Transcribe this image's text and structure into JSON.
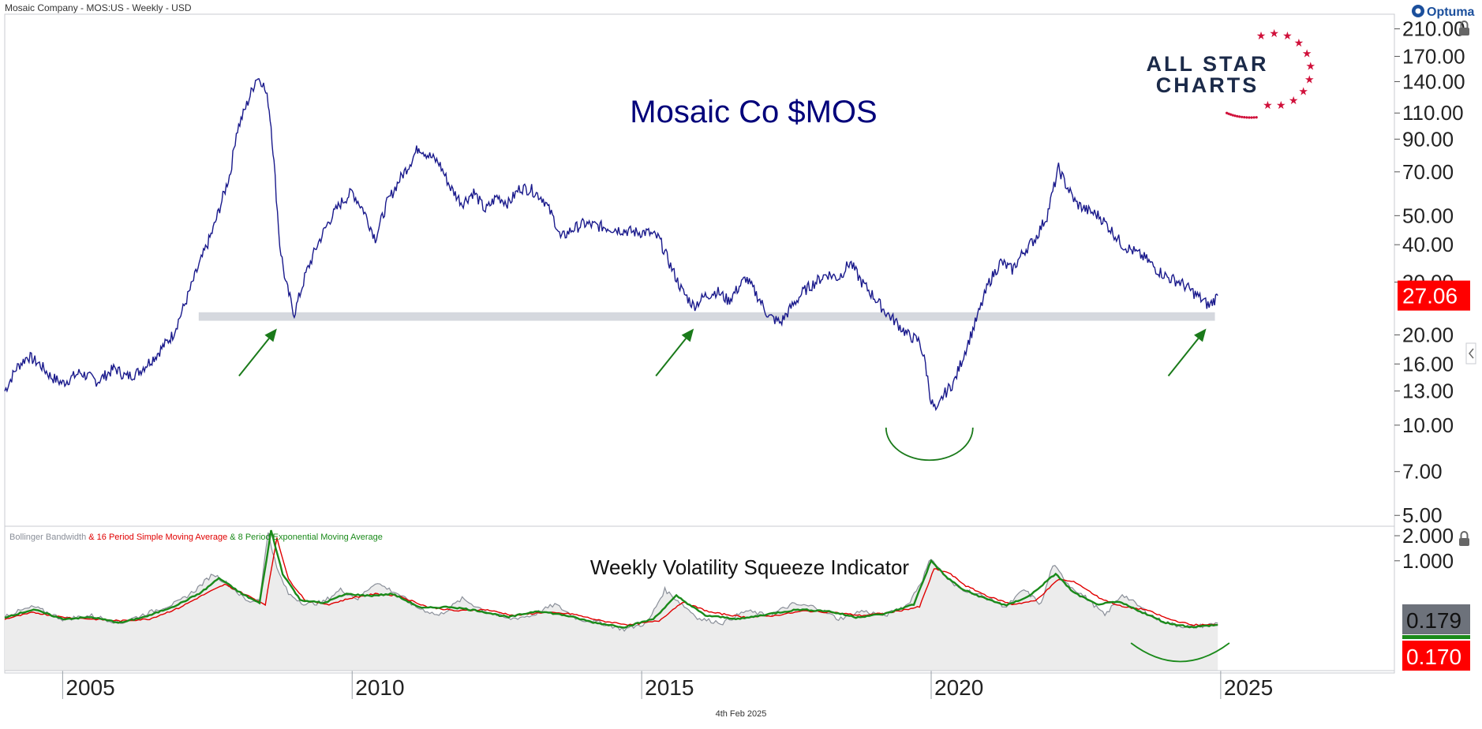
{
  "header": {
    "instrument": "Mosaic Company - MOS:US - Weekly - USD",
    "provider": "Optuma",
    "date": "4th Feb 2025"
  },
  "brand": {
    "line1": "ALL STAR",
    "line2": "CHARTS"
  },
  "colors": {
    "price": "#1a1a8c",
    "support_band": "#d5d8de",
    "arrows": "#1a7a1a",
    "price_badge": "#ff0000",
    "bbw": "#8a8f99",
    "sma": "#e00000",
    "ema": "#1a8a1a",
    "bbw_badge": "#6d727b"
  },
  "chart_data": [
    {
      "type": "line",
      "title": "Mosaic Co $MOS",
      "scale": "log",
      "ylim": [
        4.6,
        235
      ],
      "xlim": [
        2004.0,
        2028.0
      ],
      "yticks": [
        "210.00",
        "170.00",
        "140.00",
        "110.00",
        "90.00",
        "70.00",
        "50.00",
        "40.00",
        "30.00",
        "20.00",
        "16.00",
        "13.00",
        "10.00",
        "7.00",
        "5.00"
      ],
      "ytick_values": [
        210,
        170,
        140,
        110,
        90,
        70,
        50,
        40,
        30,
        20,
        16,
        13,
        10,
        7,
        5
      ],
      "xticks": [
        "2005",
        "2010",
        "2015",
        "2020",
        "2025"
      ],
      "xtick_values": [
        2005,
        2010,
        2015,
        2020,
        2025
      ],
      "last_value": "27.06",
      "support_zone": {
        "low": 22.3,
        "high": 23.8,
        "x_start": 2007.35,
        "x_end": 2024.9
      },
      "series": [
        {
          "x": [
            2004.0,
            2004.2,
            2004.4,
            2004.6,
            2004.8,
            2005.0,
            2005.3,
            2005.6,
            2005.9,
            2006.1,
            2006.3,
            2006.6,
            2006.9,
            2007.1,
            2007.3,
            2007.6,
            2007.9,
            2008.0,
            2008.2,
            2008.35,
            2008.45,
            2008.55,
            2008.6,
            2008.65,
            2008.75,
            2008.85,
            2009.0,
            2009.2,
            2009.4,
            2009.6,
            2009.8,
            2010.0,
            2010.2,
            2010.4,
            2010.6,
            2010.8,
            2011.0,
            2011.15,
            2011.3,
            2011.5,
            2011.7,
            2011.9,
            2012.1,
            2012.3,
            2012.5,
            2012.7,
            2012.9,
            2013.1,
            2013.3,
            2013.5,
            2013.6,
            2013.8,
            2014.0,
            2014.3,
            2014.6,
            2014.9,
            2015.1,
            2015.3,
            2015.5,
            2015.7,
            2015.9,
            2016.1,
            2016.3,
            2016.5,
            2016.8,
            2017.0,
            2017.2,
            2017.4,
            2017.6,
            2017.8,
            2018.0,
            2018.2,
            2018.4,
            2018.6,
            2018.8,
            2019.0,
            2019.2,
            2019.4,
            2019.6,
            2019.8,
            2019.9,
            2020.0,
            2020.1,
            2020.2,
            2020.4,
            2020.6,
            2020.8,
            2021.0,
            2021.2,
            2021.4,
            2021.6,
            2021.8,
            2022.0,
            2022.2,
            2022.3,
            2022.5,
            2022.7,
            2022.9,
            2023.1,
            2023.3,
            2023.5,
            2023.7,
            2023.9,
            2024.1,
            2024.3,
            2024.5,
            2024.7,
            2024.8,
            2024.95
          ],
          "values": [
            13.0,
            15.5,
            17.0,
            16.0,
            14.5,
            13.8,
            15.0,
            14.0,
            15.5,
            14.5,
            15.0,
            17.0,
            20.0,
            25.0,
            32.0,
            45.0,
            70.0,
            95.0,
            120.0,
            145.0,
            140.0,
            120.0,
            100.0,
            75.0,
            40.0,
            30.0,
            23.5,
            32.0,
            40.0,
            48.0,
            55.0,
            60.0,
            52.0,
            42.0,
            55.0,
            65.0,
            75.0,
            85.0,
            80.0,
            75.0,
            62.0,
            55.0,
            60.0,
            52.0,
            58.0,
            55.0,
            62.0,
            61.0,
            57.0,
            48.0,
            42.0,
            45.0,
            47.0,
            46.0,
            45.0,
            44.0,
            44.0,
            42.0,
            34.0,
            28.0,
            25.0,
            27.0,
            28.0,
            26.0,
            31.0,
            27.0,
            23.0,
            22.0,
            25.0,
            28.0,
            30.0,
            32.0,
            31.0,
            35.0,
            30.0,
            27.0,
            24.0,
            22.0,
            20.0,
            19.0,
            16.0,
            12.0,
            11.0,
            12.5,
            14.0,
            18.0,
            23.0,
            30.0,
            35.0,
            33.0,
            38.0,
            42.0,
            50.0,
            72.0,
            65.0,
            55.0,
            52.0,
            50.0,
            45.0,
            40.0,
            38.0,
            36.0,
            33.0,
            31.0,
            30.0,
            28.0,
            26.0,
            25.0,
            27.06
          ]
        }
      ]
    },
    {
      "type": "line",
      "title": "Weekly Volatility Squeeze Indicator",
      "scale": "log",
      "ylim": [
        0.048,
        2.6
      ],
      "xlim": [
        2004.0,
        2028.0
      ],
      "yticks": [
        "2.000",
        "1.000"
      ],
      "ytick_values": [
        2.0,
        1.0
      ],
      "legend_parts": [
        "Bollinger Bandwidth",
        " & 16 Period Simple Moving Average",
        " & 8 Period Exponential Moving Average"
      ],
      "badges": [
        "0.179",
        "0.170"
      ],
      "series": [
        {
          "name": "Bollinger Bandwidth",
          "x": [
            2004.0,
            2004.5,
            2005.0,
            2005.5,
            2006.0,
            2006.5,
            2007.0,
            2007.3,
            2007.6,
            2007.9,
            2008.2,
            2008.4,
            2008.55,
            2008.7,
            2008.9,
            2009.2,
            2009.5,
            2009.8,
            2010.1,
            2010.4,
            2010.8,
            2011.1,
            2011.5,
            2011.9,
            2012.3,
            2012.7,
            2013.1,
            2013.5,
            2013.9,
            2014.3,
            2014.7,
            2015.1,
            2015.4,
            2015.7,
            2016.0,
            2016.4,
            2016.8,
            2017.2,
            2017.6,
            2018.0,
            2018.4,
            2018.8,
            2019.2,
            2019.6,
            2019.85,
            2020.0,
            2020.2,
            2020.4,
            2020.7,
            2021.0,
            2021.3,
            2021.6,
            2021.9,
            2022.1,
            2022.4,
            2022.7,
            2023.0,
            2023.3,
            2023.6,
            2023.9,
            2024.2,
            2024.5,
            2024.8,
            2024.95
          ],
          "values": [
            0.22,
            0.28,
            0.2,
            0.22,
            0.18,
            0.24,
            0.32,
            0.45,
            0.7,
            0.5,
            0.32,
            0.35,
            2.2,
            0.8,
            0.4,
            0.3,
            0.32,
            0.45,
            0.35,
            0.55,
            0.4,
            0.28,
            0.22,
            0.35,
            0.25,
            0.2,
            0.22,
            0.3,
            0.2,
            0.18,
            0.15,
            0.18,
            0.45,
            0.3,
            0.2,
            0.18,
            0.25,
            0.22,
            0.3,
            0.28,
            0.2,
            0.25,
            0.22,
            0.3,
            0.6,
            1.1,
            0.7,
            0.5,
            0.42,
            0.35,
            0.28,
            0.45,
            0.3,
            0.9,
            0.5,
            0.35,
            0.22,
            0.4,
            0.28,
            0.2,
            0.17,
            0.16,
            0.17,
            0.179
          ]
        },
        {
          "name": "16 Period Simple Moving Average",
          "x": [
            2004.0,
            2004.5,
            2005.0,
            2005.5,
            2006.0,
            2006.5,
            2007.0,
            2007.4,
            2007.8,
            2008.2,
            2008.5,
            2008.7,
            2008.9,
            2009.2,
            2009.6,
            2010.0,
            2010.4,
            2010.8,
            2011.3,
            2011.8,
            2012.3,
            2012.8,
            2013.3,
            2013.8,
            2014.3,
            2014.8,
            2015.3,
            2015.7,
            2016.2,
            2016.8,
            2017.3,
            2017.8,
            2018.3,
            2018.8,
            2019.3,
            2019.8,
            2020.05,
            2020.3,
            2020.6,
            2021.0,
            2021.4,
            2021.8,
            2022.2,
            2022.5,
            2022.9,
            2023.3,
            2023.7,
            2024.1,
            2024.5,
            2024.95
          ],
          "values": [
            0.2,
            0.24,
            0.21,
            0.2,
            0.19,
            0.2,
            0.27,
            0.38,
            0.52,
            0.38,
            0.3,
            1.9,
            0.6,
            0.33,
            0.3,
            0.36,
            0.4,
            0.38,
            0.28,
            0.25,
            0.26,
            0.22,
            0.24,
            0.23,
            0.19,
            0.17,
            0.19,
            0.32,
            0.24,
            0.21,
            0.22,
            0.25,
            0.24,
            0.22,
            0.24,
            0.28,
            0.8,
            0.72,
            0.5,
            0.37,
            0.3,
            0.33,
            0.6,
            0.55,
            0.36,
            0.28,
            0.26,
            0.2,
            0.17,
            0.17
          ]
        },
        {
          "name": "8 Period Exponential Moving Average",
          "x": [
            2004.0,
            2004.5,
            2005.0,
            2005.5,
            2006.0,
            2006.5,
            2007.0,
            2007.4,
            2007.7,
            2008.1,
            2008.4,
            2008.6,
            2008.8,
            2009.1,
            2009.5,
            2009.9,
            2010.3,
            2010.7,
            2011.2,
            2011.7,
            2012.2,
            2012.7,
            2013.2,
            2013.7,
            2014.2,
            2014.7,
            2015.2,
            2015.6,
            2016.1,
            2016.7,
            2017.2,
            2017.7,
            2018.2,
            2018.7,
            2019.2,
            2019.7,
            2020.0,
            2020.25,
            2020.55,
            2020.9,
            2021.3,
            2021.7,
            2022.15,
            2022.45,
            2022.85,
            2023.25,
            2023.65,
            2024.05,
            2024.5,
            2024.95
          ],
          "values": [
            0.21,
            0.26,
            0.2,
            0.21,
            0.18,
            0.22,
            0.3,
            0.42,
            0.62,
            0.4,
            0.31,
            2.3,
            0.7,
            0.34,
            0.31,
            0.4,
            0.38,
            0.4,
            0.27,
            0.28,
            0.25,
            0.21,
            0.25,
            0.22,
            0.18,
            0.16,
            0.2,
            0.38,
            0.22,
            0.2,
            0.23,
            0.26,
            0.25,
            0.21,
            0.23,
            0.3,
            1.0,
            0.65,
            0.45,
            0.36,
            0.29,
            0.38,
            0.7,
            0.42,
            0.3,
            0.32,
            0.24,
            0.18,
            0.16,
            0.17
          ]
        }
      ]
    }
  ]
}
